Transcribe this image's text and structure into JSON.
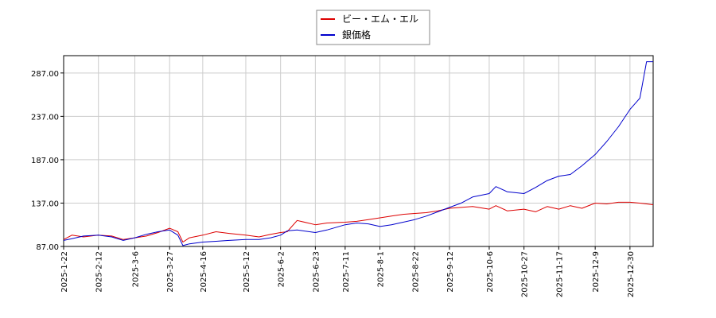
{
  "chart_data": {
    "type": "line",
    "title": "",
    "xlabel": "",
    "ylabel": "",
    "ylim": [
      87,
      307
    ],
    "yticks": [
      "87.00",
      "137.00",
      "187.00",
      "237.00",
      "287.00"
    ],
    "xticks": [
      "2025-1-22",
      "2025-2-12",
      "2025-3-6",
      "2025-3-27",
      "2025-4-16",
      "2025-5-12",
      "2025-6-2",
      "2025-6-23",
      "2025-7-11",
      "2025-8-1",
      "2025-8-22",
      "2025-9-12",
      "2025-10-6",
      "2025-10-27",
      "2025-11-17",
      "2025-12-9",
      "2025-12-30"
    ],
    "grid": true,
    "legend_position": "top-center",
    "x": [
      "2025-1-22",
      "2025-1-27",
      "2025-2-3",
      "2025-2-12",
      "2025-2-20",
      "2025-2-27",
      "2025-3-6",
      "2025-3-13",
      "2025-3-20",
      "2025-3-27",
      "2025-4-1",
      "2025-4-4",
      "2025-4-8",
      "2025-4-16",
      "2025-4-24",
      "2025-5-2",
      "2025-5-12",
      "2025-5-20",
      "2025-5-27",
      "2025-6-2",
      "2025-6-6",
      "2025-6-12",
      "2025-6-23",
      "2025-6-30",
      "2025-7-11",
      "2025-7-18",
      "2025-7-25",
      "2025-8-1",
      "2025-8-8",
      "2025-8-15",
      "2025-8-22",
      "2025-8-29",
      "2025-9-5",
      "2025-9-12",
      "2025-9-19",
      "2025-9-26",
      "2025-10-6",
      "2025-10-10",
      "2025-10-17",
      "2025-10-27",
      "2025-11-3",
      "2025-11-10",
      "2025-11-17",
      "2025-11-24",
      "2025-12-1",
      "2025-12-9",
      "2025-12-16",
      "2025-12-23",
      "2025-12-30",
      "2026-1-5",
      "2026-1-9",
      "2026-1-13"
    ],
    "series": [
      {
        "name": "ビー・エム・エル",
        "color": "#dd0000",
        "values": [
          95,
          100,
          98,
          100,
          99,
          95,
          97,
          99,
          103,
          108,
          104,
          92,
          97,
          100,
          104,
          102,
          100,
          98,
          101,
          103,
          104,
          117,
          112,
          114,
          115,
          116,
          118,
          120,
          122,
          124,
          125,
          126,
          128,
          131,
          132,
          133,
          130,
          134,
          128,
          130,
          127,
          133,
          130,
          134,
          131,
          137,
          136,
          138,
          138,
          137,
          136,
          135
        ]
      },
      {
        "name": "銀価格",
        "color": "#0000cc",
        "values": [
          94,
          96,
          99,
          100,
          98,
          94,
          97,
          101,
          104,
          106,
          100,
          88,
          90,
          92,
          93,
          94,
          95,
          95,
          97,
          100,
          105,
          106,
          103,
          106,
          112,
          114,
          113,
          110,
          112,
          115,
          118,
          122,
          127,
          132,
          137,
          144,
          148,
          156,
          150,
          148,
          155,
          163,
          168,
          170,
          180,
          193,
          208,
          225,
          245,
          258,
          300,
          300
        ]
      }
    ]
  }
}
